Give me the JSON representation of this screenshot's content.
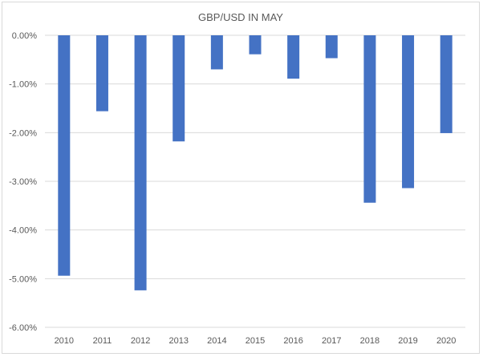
{
  "chart_data": {
    "type": "bar",
    "title": "GBP/USD IN MAY",
    "categories": [
      "2010",
      "2011",
      "2012",
      "2013",
      "2014",
      "2015",
      "2016",
      "2017",
      "2018",
      "2019",
      "2020"
    ],
    "values": [
      -4.94,
      -1.56,
      -5.24,
      -2.18,
      -0.7,
      -0.39,
      -0.89,
      -0.47,
      -3.44,
      -3.14,
      -2.01
    ],
    "ylim": [
      -6,
      0
    ],
    "yticks": [
      0,
      -1,
      -2,
      -3,
      -4,
      -5,
      -6
    ],
    "ytick_labels": [
      "0.00%",
      "-1.00%",
      "-2.00%",
      "-3.00%",
      "-4.00%",
      "-5.00%",
      "-6.00%"
    ],
    "xlabel": "",
    "ylabel": "",
    "grid": true,
    "legend": "none",
    "colors": {
      "bar": "#4472c4",
      "grid": "#d9d9d9",
      "text": "#595959"
    }
  }
}
